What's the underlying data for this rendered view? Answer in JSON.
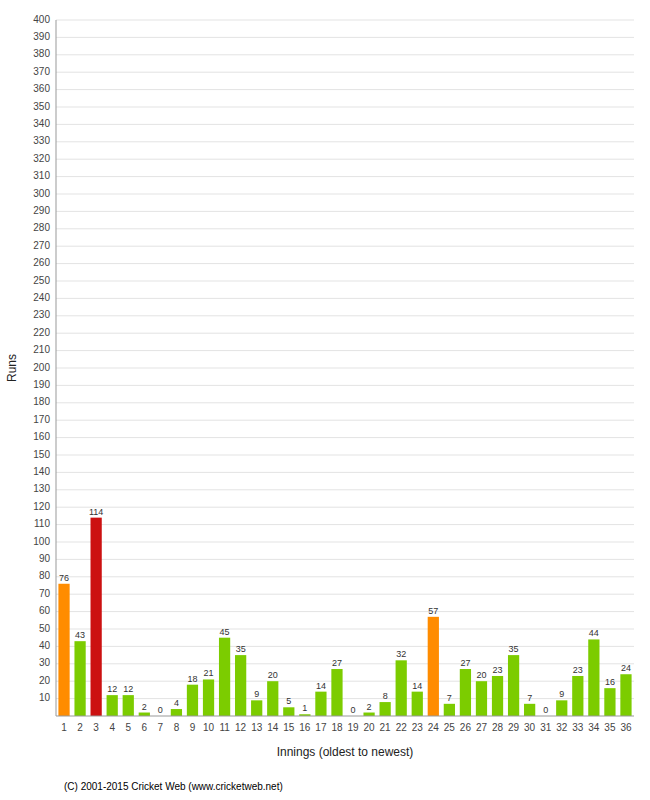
{
  "chart_data": {
    "type": "bar",
    "xlabel": "Innings (oldest to newest)",
    "ylabel": "Runs",
    "categories": [
      "1",
      "2",
      "3",
      "4",
      "5",
      "6",
      "7",
      "8",
      "9",
      "10",
      "11",
      "12",
      "13",
      "14",
      "15",
      "16",
      "17",
      "18",
      "19",
      "20",
      "21",
      "22",
      "23",
      "24",
      "25",
      "26",
      "27",
      "28",
      "29",
      "30",
      "31",
      "32",
      "33",
      "34",
      "35",
      "36"
    ],
    "values": [
      76,
      43,
      114,
      12,
      12,
      2,
      0,
      4,
      18,
      21,
      45,
      35,
      9,
      20,
      5,
      1,
      14,
      27,
      0,
      2,
      8,
      32,
      14,
      57,
      7,
      27,
      20,
      23,
      35,
      7,
      0,
      9,
      23,
      44,
      16,
      24
    ],
    "colors": [
      "#ff8c00",
      "#7ccc00",
      "#cc1111",
      "#7ccc00",
      "#7ccc00",
      "#7ccc00",
      "#7ccc00",
      "#7ccc00",
      "#7ccc00",
      "#7ccc00",
      "#7ccc00",
      "#7ccc00",
      "#7ccc00",
      "#7ccc00",
      "#7ccc00",
      "#7ccc00",
      "#7ccc00",
      "#7ccc00",
      "#7ccc00",
      "#7ccc00",
      "#7ccc00",
      "#7ccc00",
      "#7ccc00",
      "#ff8c00",
      "#7ccc00",
      "#7ccc00",
      "#7ccc00",
      "#7ccc00",
      "#7ccc00",
      "#7ccc00",
      "#7ccc00",
      "#7ccc00",
      "#7ccc00",
      "#7ccc00",
      "#7ccc00",
      "#7ccc00"
    ],
    "ylim": [
      0,
      400
    ],
    "yticks": [
      10,
      20,
      30,
      40,
      50,
      60,
      70,
      80,
      90,
      100,
      110,
      120,
      130,
      140,
      150,
      160,
      170,
      180,
      190,
      200,
      210,
      220,
      230,
      240,
      250,
      260,
      270,
      280,
      290,
      300,
      310,
      320,
      330,
      340,
      350,
      360,
      370,
      380,
      390,
      400
    ],
    "grid": true,
    "data_labels": true,
    "annotations": [
      "(C) 2001-2015 Cricket Web (www.cricketweb.net)"
    ]
  }
}
